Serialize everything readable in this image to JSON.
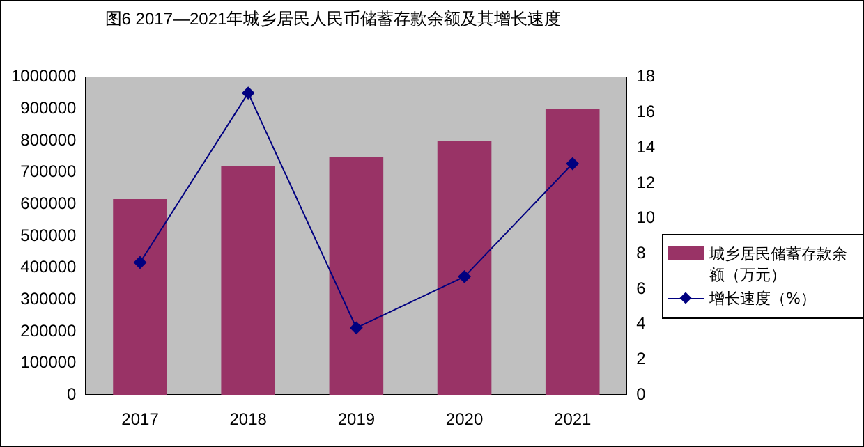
{
  "chart_data": {
    "type": "bar",
    "title": "图6 2017—2021年城乡居民人民币储蓄存款余额及其增长速度",
    "categories": [
      "2017",
      "2018",
      "2019",
      "2020",
      "2021"
    ],
    "series": [
      {
        "name": "城乡居民储蓄存款余额（万元）",
        "color": "#993366",
        "values": [
          616000,
          720000,
          749000,
          800000,
          900000
        ]
      },
      {
        "name": "增长速度（%）",
        "type": "line",
        "axis": "y2",
        "color": "#000080",
        "values": [
          7.5,
          17.1,
          3.8,
          6.7,
          13.1
        ]
      }
    ],
    "ylim": [
      0,
      1000000
    ],
    "yticks": [
      0,
      100000,
      200000,
      300000,
      400000,
      500000,
      600000,
      700000,
      800000,
      900000,
      1000000
    ],
    "y2lim": [
      0,
      18
    ],
    "y2ticks": [
      0,
      2,
      4,
      6,
      8,
      10,
      12,
      14,
      16,
      18
    ],
    "marker": "diamond",
    "grid": false,
    "legend": "right"
  }
}
